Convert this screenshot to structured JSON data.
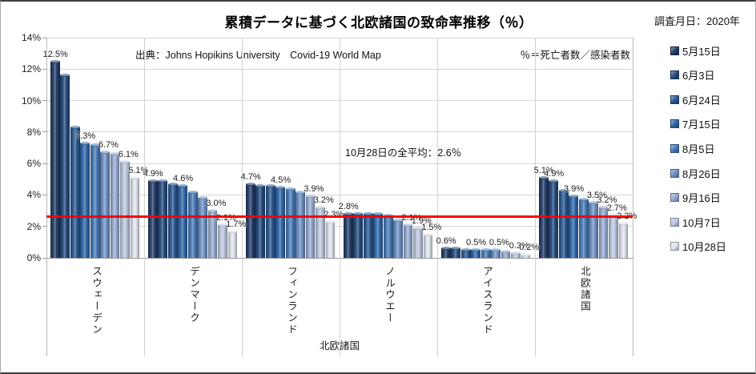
{
  "chart_data": {
    "type": "bar",
    "title": "累積データに基づく北欧諸国の致命率推移（％）",
    "source_note": "出典：Johns Hopikins University　Covid-19 World Map",
    "formula_note": "％＝死亡者数／感染者数",
    "average_note": "10月28日の全平均：2.6％",
    "average_value": 2.6,
    "average_line_color": "#fe0000",
    "xlabel": "北欧諸国",
    "ylabel": "",
    "ylim": [
      0,
      14
    ],
    "ytick_step": 2,
    "ytick_labels": [
      "0%",
      "2%",
      "4%",
      "6%",
      "8%",
      "10%",
      "12%",
      "14%"
    ],
    "grid": true,
    "legend_position": "right",
    "legend_title": "調査月日：2020年",
    "categories": [
      "スウェーデン",
      "デンマーク",
      "フィンランド",
      "ノルウエー",
      "アイスランド",
      "北欧諸国"
    ],
    "series": [
      {
        "name": "5月15日",
        "color": "#1F3864",
        "values": [
          12.5,
          4.9,
          4.7,
          2.8,
          0.6,
          5.1
        ]
      },
      {
        "name": "6月3日",
        "color": "#1F4779",
        "values": [
          11.6,
          4.9,
          4.6,
          2.8,
          0.6,
          4.9
        ]
      },
      {
        "name": "6月24日",
        "color": "#25548E",
        "values": [
          8.3,
          4.7,
          4.6,
          2.8,
          0.5,
          4.3
        ]
      },
      {
        "name": "7月15日",
        "color": "#2C64A5",
        "values": [
          7.3,
          4.6,
          4.5,
          2.8,
          0.5,
          3.9
        ]
      },
      {
        "name": "8月5日",
        "color": "#4377B4",
        "values": [
          7.2,
          4.2,
          4.4,
          2.7,
          0.5,
          3.7
        ]
      },
      {
        "name": "8月26日",
        "color": "#6B8EC3",
        "values": [
          6.7,
          3.8,
          4.2,
          2.4,
          0.5,
          3.5
        ]
      },
      {
        "name": "9月16日",
        "color": "#93A8CE",
        "values": [
          6.6,
          3.0,
          3.9,
          2.1,
          0.4,
          3.2
        ]
      },
      {
        "name": "10月7日",
        "color": "#B9C5DC",
        "values": [
          6.1,
          2.1,
          3.2,
          1.9,
          0.3,
          2.7
        ]
      },
      {
        "name": "10月28日",
        "color": "#DDE2EC",
        "values": [
          5.1,
          1.7,
          2.3,
          1.5,
          0.2,
          2.2
        ]
      }
    ],
    "point_labels": [
      {
        "category": "スウェーデン",
        "labels": [
          {
            "s": 0,
            "t": "12.5%"
          },
          {
            "s": 3,
            "t": "7.3%"
          },
          {
            "s": 5,
            "t": "6.7%"
          },
          {
            "s": 7,
            "t": "6.1%"
          },
          {
            "s": 8,
            "t": "5.1%"
          }
        ]
      },
      {
        "category": "デンマーク",
        "labels": [
          {
            "s": 0,
            "t": "4.9%"
          },
          {
            "s": 3,
            "t": "4.6%"
          },
          {
            "s": 6,
            "t": "3.0%"
          },
          {
            "s": 7,
            "t": "2.1%"
          },
          {
            "s": 8,
            "t": "1.7%"
          }
        ]
      },
      {
        "category": "フィンランド",
        "labels": [
          {
            "s": 0,
            "t": "4.7%"
          },
          {
            "s": 3,
            "t": "4.5%"
          },
          {
            "s": 6,
            "t": "3.9%"
          },
          {
            "s": 7,
            "t": "3.2%"
          },
          {
            "s": 8,
            "t": "2.3%"
          }
        ]
      },
      {
        "category": "ノルウエー",
        "labels": [
          {
            "s": 0,
            "t": "2.8%"
          },
          {
            "s": 6,
            "t": "2.1%"
          },
          {
            "s": 7,
            "t": "1.9%"
          },
          {
            "s": 8,
            "t": "1.5%"
          }
        ]
      },
      {
        "category": "アイスランド",
        "labels": [
          {
            "s": 0,
            "t": "0.6%"
          },
          {
            "s": 3,
            "t": "0.5%"
          },
          {
            "s": 5,
            "t": "0.5%"
          },
          {
            "s": 7,
            "t": "0.3%"
          },
          {
            "s": 8,
            "t": "0.2%"
          }
        ]
      },
      {
        "category": "北欧諸国",
        "labels": [
          {
            "s": 0,
            "t": "5.1%"
          },
          {
            "s": 1,
            "t": "4.9%"
          },
          {
            "s": 3,
            "t": "3.9%"
          },
          {
            "s": 5,
            "t": "3.5%"
          },
          {
            "s": 6,
            "t": "3.2%"
          },
          {
            "s": 7,
            "t": "2.7%"
          },
          {
            "s": 8,
            "t": "2.2%"
          }
        ]
      }
    ]
  }
}
